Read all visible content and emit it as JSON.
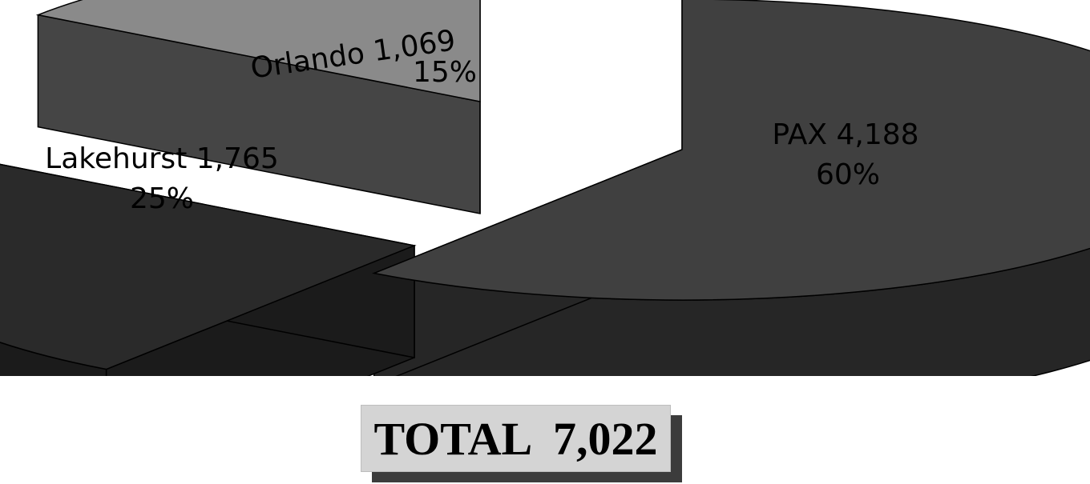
{
  "chart_data": {
    "type": "pie",
    "style": "3d-exploded",
    "slices": [
      {
        "name": "PAX",
        "value": 4188,
        "percent": "60%",
        "value_label": "4,188",
        "color": "#404040",
        "side_color": "#262626"
      },
      {
        "name": "Lakehurst",
        "value": 1765,
        "percent": "25%",
        "value_label": "1,765",
        "color": "#2a2a2a",
        "side_color": "#1b1b1b"
      },
      {
        "name": "Orlando",
        "value": 1069,
        "percent": "15%",
        "value_label": "1,069",
        "color": "#8a8a8a",
        "side_color": "#454545"
      }
    ],
    "total_label": "TOTAL",
    "total_value": "7,022"
  }
}
